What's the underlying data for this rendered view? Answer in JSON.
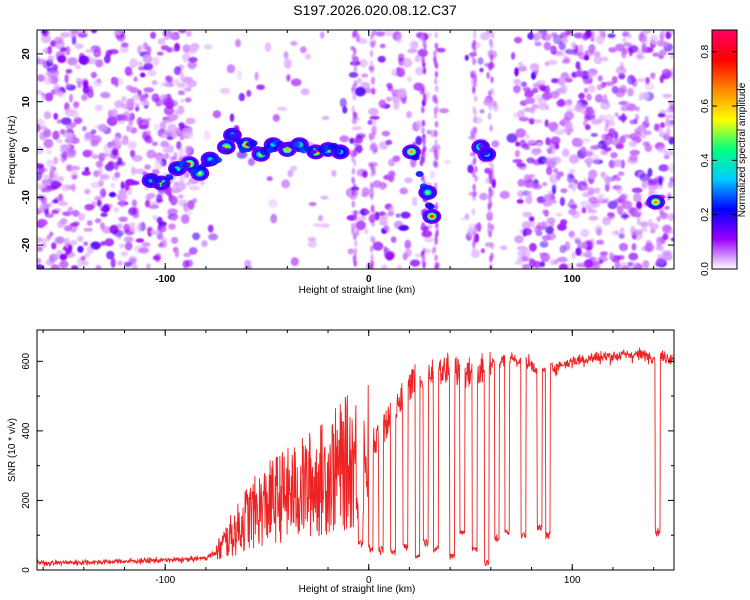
{
  "chart_data": [
    {
      "type": "heatmap",
      "title": "S197.2026.020.08.12.C37",
      "xlabel": "Height of straight line (km)",
      "ylabel": "Frequency (Hz)",
      "xlim": [
        -163,
        150
      ],
      "ylim": [
        -25,
        25
      ],
      "xticks": [
        -100,
        0,
        100
      ],
      "xtick_labels": [
        "-100",
        "0",
        "100"
      ],
      "yticks": [
        -20,
        -10,
        0,
        10,
        20
      ],
      "ytick_labels": [
        "-20",
        "-10",
        "0",
        "10",
        "20"
      ],
      "colorbar": {
        "label": "Normalized spectral amplitude",
        "range": [
          0.0,
          0.88
        ],
        "ticks": [
          0.0,
          0.2,
          0.4,
          0.6,
          0.8
        ],
        "tick_labels": [
          "0.0",
          "0.2",
          "0.4",
          "0.6",
          "0.8"
        ],
        "colormap": [
          "#ffffff",
          "#9900ff",
          "#0000ff",
          "#00ccff",
          "#00ff80",
          "#ffff00",
          "#ff8800",
          "#ff0000",
          "#ff0066"
        ]
      },
      "signal_trace": [
        {
          "x": -107,
          "y": -6.5
        },
        {
          "x": -102,
          "y": -7
        },
        {
          "x": -94,
          "y": -4
        },
        {
          "x": -88,
          "y": -3
        },
        {
          "x": -83,
          "y": -5
        },
        {
          "x": -78,
          "y": -2
        },
        {
          "x": -70,
          "y": 0.5
        },
        {
          "x": -67,
          "y": 3
        },
        {
          "x": -60,
          "y": 1
        },
        {
          "x": -53,
          "y": -1
        },
        {
          "x": -47,
          "y": 1
        },
        {
          "x": -40,
          "y": 0
        },
        {
          "x": -34,
          "y": 1
        },
        {
          "x": -26,
          "y": -0.5
        },
        {
          "x": -20,
          "y": 0
        },
        {
          "x": -14,
          "y": -0.5
        },
        {
          "x": 21,
          "y": -0.5
        },
        {
          "x": 29,
          "y": -9
        },
        {
          "x": 31,
          "y": -14
        },
        {
          "x": 55,
          "y": 0.5
        },
        {
          "x": 58,
          "y": -1
        },
        {
          "x": 141,
          "y": -11
        }
      ]
    },
    {
      "type": "line",
      "xlabel": "Height of straight line (km)",
      "ylabel": "SNR (10 * v/v)",
      "xlim": [
        -163,
        150
      ],
      "ylim": [
        0,
        690
      ],
      "xticks": [
        -100,
        0,
        100
      ],
      "xtick_labels": [
        "-100",
        "0",
        "100"
      ],
      "yticks": [
        0,
        200,
        400,
        600
      ],
      "ytick_labels": [
        "0",
        "200",
        "400",
        "600"
      ],
      "color": "#ee2222",
      "series": [
        {
          "name": "SNR",
          "x": [
            -163,
            -140,
            -120,
            -100,
            -90,
            -80,
            -75,
            -70,
            -65,
            -60,
            -55,
            -50,
            -45,
            -40,
            -35,
            -30,
            -25,
            -20,
            -15,
            -10,
            -5,
            0,
            5,
            10,
            15,
            20,
            25,
            30,
            35,
            40,
            45,
            50,
            55,
            60,
            65,
            70,
            75,
            80,
            85,
            90,
            95,
            100,
            110,
            120,
            130,
            140,
            150
          ],
          "y": [
            20,
            22,
            25,
            28,
            30,
            35,
            50,
            90,
            120,
            160,
            180,
            200,
            220,
            230,
            240,
            260,
            270,
            290,
            310,
            330,
            340,
            360,
            390,
            430,
            480,
            530,
            560,
            580,
            560,
            590,
            560,
            570,
            580,
            590,
            600,
            610,
            600,
            590,
            570,
            580,
            590,
            600,
            610,
            615,
            620,
            615,
            610
          ]
        }
      ],
      "dropouts": [
        {
          "x": -4,
          "y": 80
        },
        {
          "x": 1,
          "y": 60
        },
        {
          "x": 6,
          "y": 55
        },
        {
          "x": 12,
          "y": 50
        },
        {
          "x": 18,
          "y": 70
        },
        {
          "x": 24,
          "y": 40
        },
        {
          "x": 28,
          "y": 80
        },
        {
          "x": 33,
          "y": 60
        },
        {
          "x": 41,
          "y": 40
        },
        {
          "x": 46,
          "y": 110
        },
        {
          "x": 52,
          "y": 60
        },
        {
          "x": 58,
          "y": 20
        },
        {
          "x": 63,
          "y": 90
        },
        {
          "x": 68,
          "y": 110
        },
        {
          "x": 76,
          "y": 100
        },
        {
          "x": 84,
          "y": 120
        },
        {
          "x": 88,
          "y": 100
        },
        {
          "x": 142,
          "y": 110
        }
      ]
    }
  ]
}
